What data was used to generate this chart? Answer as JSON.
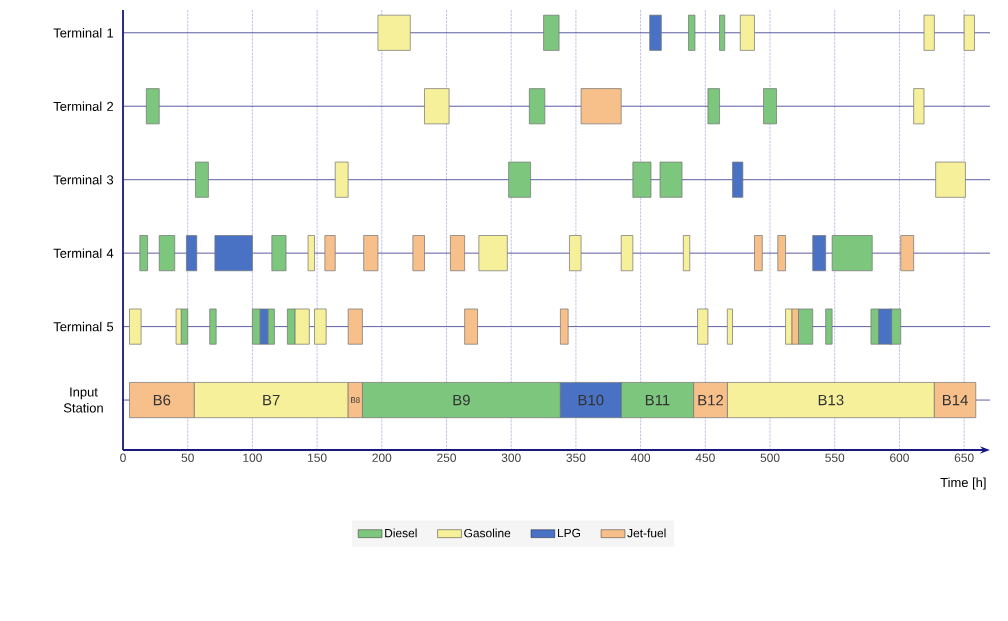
{
  "chart_data": {
    "type": "bar",
    "orientation": "horizontal",
    "xlabel": "Time [h]",
    "categories": [
      "Terminal 1",
      "Terminal 2",
      "Terminal 3",
      "Terminal 4",
      "Terminal 5",
      "Input Station"
    ],
    "xlim": [
      0,
      670
    ],
    "xticks": [
      0,
      50,
      100,
      150,
      200,
      250,
      300,
      350,
      400,
      450,
      500,
      550,
      600,
      650
    ],
    "grid": true,
    "legend": "bottom",
    "series": [
      {
        "name": "Diesel",
        "color": "#7dc67d",
        "base": [
          325,
          18,
          56,
          13,
          45,
          185
        ],
        "values": [
          12,
          10,
          10,
          6,
          5,
          153
        ],
        "value_labels": [
          null,
          null,
          null,
          null,
          null,
          "B9"
        ]
      },
      {
        "color": "#7dc67d",
        "base": [
          437,
          314,
          298,
          28,
          67,
          385
        ],
        "values": [
          5,
          12,
          17,
          12,
          5,
          56
        ],
        "value_labels": [
          null,
          null,
          null,
          null,
          null,
          "B11"
        ]
      },
      {
        "color": "#7dc67d",
        "base": [
          461,
          452,
          394,
          115,
          100,
          null
        ],
        "values": [
          4,
          9,
          14,
          11,
          6,
          null
        ]
      },
      {
        "color": "#7dc67d",
        "base": [
          null,
          495,
          415,
          548,
          112,
          null
        ],
        "values": [
          null,
          10,
          17,
          31,
          5,
          null
        ]
      },
      {
        "color": "#7dc67d",
        "base": [
          null,
          null,
          null,
          null,
          127,
          null
        ],
        "values": [
          null,
          null,
          null,
          null,
          6,
          null
        ]
      },
      {
        "color": "#7dc67d",
        "base": [
          null,
          null,
          null,
          null,
          522,
          null
        ],
        "values": [
          null,
          null,
          null,
          null,
          11,
          null
        ]
      },
      {
        "color": "#7dc67d",
        "base": [
          null,
          null,
          null,
          null,
          543,
          null
        ],
        "values": [
          null,
          null,
          null,
          null,
          5,
          null
        ]
      },
      {
        "color": "#7dc67d",
        "base": [
          null,
          null,
          null,
          null,
          578,
          null
        ],
        "values": [
          null,
          null,
          null,
          null,
          6,
          null
        ]
      },
      {
        "color": "#7dc67d",
        "base": [
          null,
          null,
          null,
          null,
          593,
          null
        ],
        "values": [
          null,
          null,
          null,
          null,
          8,
          null
        ]
      },
      {
        "name": "Gasoline",
        "color": "#f7f09a",
        "base": [
          197,
          233,
          164,
          143,
          5,
          55
        ],
        "values": [
          25,
          19,
          10,
          5,
          9,
          119
        ],
        "value_labels": [
          null,
          null,
          null,
          null,
          null,
          "B7"
        ]
      },
      {
        "color": "#f7f09a",
        "base": [
          477,
          611,
          628,
          275,
          41,
          467
        ],
        "values": [
          11,
          8,
          23,
          22,
          4,
          160
        ],
        "value_labels": [
          null,
          null,
          null,
          null,
          null,
          "B13"
        ]
      },
      {
        "color": "#f7f09a",
        "base": [
          619,
          null,
          null,
          345,
          133,
          null
        ],
        "values": [
          8,
          null,
          null,
          9,
          11,
          null
        ]
      },
      {
        "color": "#f7f09a",
        "base": [
          650,
          null,
          null,
          385,
          148,
          null
        ],
        "values": [
          8,
          null,
          null,
          9,
          9,
          null
        ]
      },
      {
        "color": "#f7f09a",
        "base": [
          null,
          null,
          null,
          433,
          444,
          null
        ],
        "values": [
          null,
          null,
          null,
          5,
          8,
          null
        ]
      },
      {
        "color": "#f7f09a",
        "base": [
          null,
          null,
          null,
          null,
          467,
          null
        ],
        "values": [
          null,
          null,
          null,
          null,
          4,
          null
        ]
      },
      {
        "color": "#f7f09a",
        "base": [
          null,
          null,
          null,
          null,
          512,
          null
        ],
        "values": [
          null,
          null,
          null,
          null,
          5,
          null
        ]
      },
      {
        "name": "LPG",
        "color": "#4a72c4",
        "base": [
          407,
          null,
          471,
          49,
          106,
          338
        ],
        "values": [
          9,
          null,
          8,
          8,
          6,
          47
        ],
        "value_labels": [
          null,
          null,
          null,
          null,
          null,
          "B10"
        ]
      },
      {
        "color": "#4a72c4",
        "base": [
          null,
          null,
          null,
          71,
          584,
          null
        ],
        "values": [
          null,
          null,
          null,
          29,
          10,
          null
        ]
      },
      {
        "color": "#4a72c4",
        "base": [
          null,
          null,
          null,
          533,
          null,
          null
        ],
        "values": [
          null,
          null,
          null,
          10,
          null,
          null
        ]
      },
      {
        "name": "Jet-fuel",
        "color": "#f7c08a",
        "base": [
          null,
          354,
          null,
          156,
          174,
          5
        ],
        "values": [
          null,
          31,
          null,
          8,
          11,
          50
        ],
        "value_labels": [
          null,
          null,
          null,
          null,
          null,
          "B6"
        ]
      },
      {
        "color": "#f7c08a",
        "base": [
          null,
          null,
          null,
          186,
          264,
          174
        ],
        "values": [
          null,
          null,
          null,
          11,
          10,
          11
        ],
        "value_labels": [
          null,
          null,
          null,
          null,
          null,
          "B8"
        ]
      },
      {
        "color": "#f7c08a",
        "base": [
          null,
          null,
          null,
          224,
          338,
          441
        ],
        "values": [
          null,
          null,
          null,
          9,
          6,
          26
        ],
        "value_labels": [
          null,
          null,
          null,
          null,
          null,
          "B12"
        ]
      },
      {
        "color": "#f7c08a",
        "base": [
          null,
          null,
          null,
          253,
          517,
          627
        ],
        "values": [
          null,
          null,
          null,
          11,
          5,
          32
        ],
        "value_labels": [
          null,
          null,
          null,
          null,
          null,
          "B14"
        ]
      },
      {
        "color": "#f7c08a",
        "base": [
          null,
          null,
          null,
          488,
          null,
          null
        ],
        "values": [
          null,
          null,
          null,
          6,
          null,
          null
        ]
      },
      {
        "color": "#f7c08a",
        "base": [
          null,
          null,
          null,
          506,
          null,
          null
        ],
        "values": [
          null,
          null,
          null,
          6,
          null,
          null
        ]
      },
      {
        "color": "#f7c08a",
        "base": [
          null,
          null,
          null,
          601,
          null,
          null
        ],
        "values": [
          null,
          null,
          null,
          10,
          null,
          null
        ]
      }
    ]
  }
}
